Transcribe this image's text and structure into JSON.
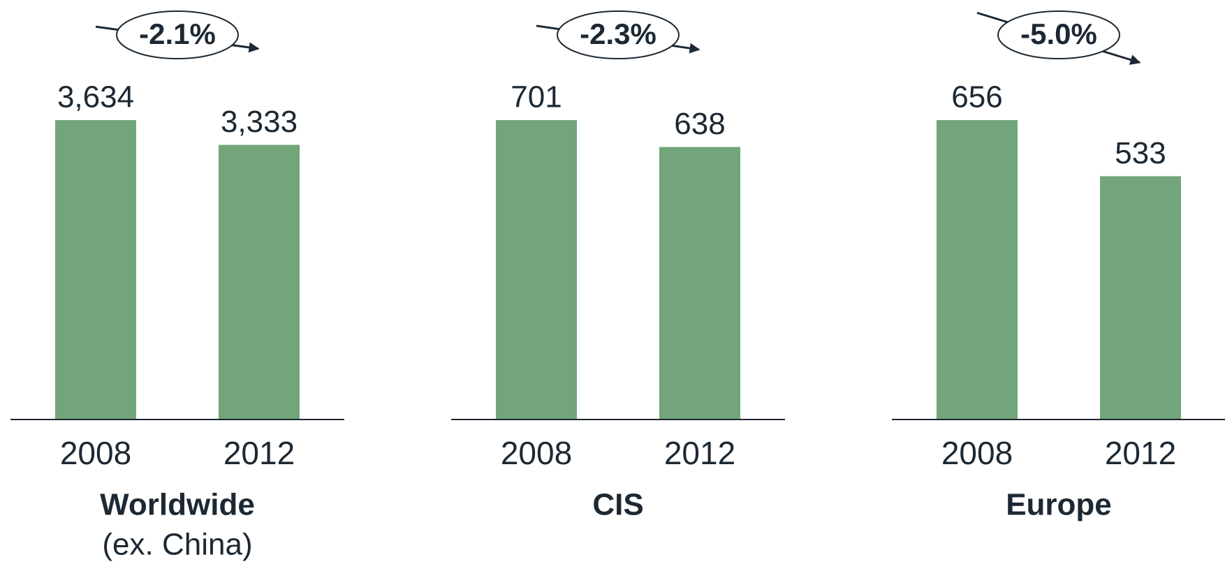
{
  "chart_data": [
    {
      "type": "bar",
      "title": "Worldwide",
      "subtitle": "(ex. China)",
      "annotation": "-2.1%",
      "categories": [
        "2008",
        "2012"
      ],
      "values": [
        3634,
        3333
      ],
      "value_labels": [
        "3,634",
        "3,333"
      ],
      "color": "#72a57a",
      "ylim": [
        0,
        3634
      ]
    },
    {
      "type": "bar",
      "title": "CIS",
      "annotation": "-2.3%",
      "categories": [
        "2008",
        "2012"
      ],
      "values": [
        701,
        638
      ],
      "color": "#72a57a",
      "ylim": [
        0,
        701
      ]
    },
    {
      "type": "bar",
      "title": "Europe",
      "annotation": "-5.0%",
      "categories": [
        "2008",
        "2012"
      ],
      "values": [
        656,
        533
      ],
      "color": "#72a57a",
      "ylim": [
        0,
        656
      ]
    }
  ]
}
